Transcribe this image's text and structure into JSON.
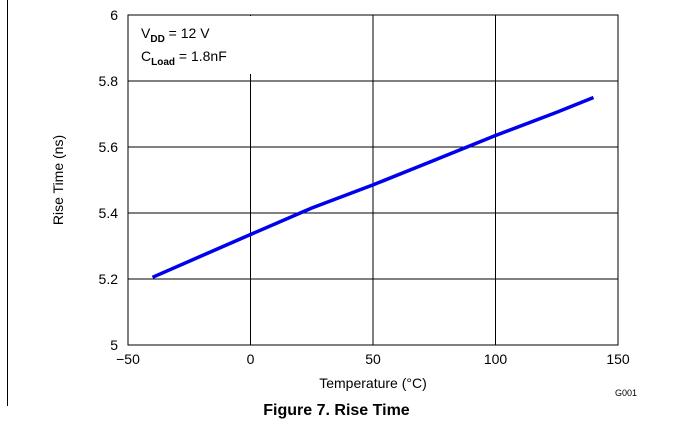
{
  "chart_data": {
    "type": "line",
    "xlabel": "Temperature (°C)",
    "ylabel": "Rise Time (ns)",
    "xlim": [
      -50,
      150
    ],
    "ylim": [
      5,
      6
    ],
    "x_ticks": [
      -50,
      0,
      50,
      100,
      150
    ],
    "x_tick_labels": [
      "−50",
      "0",
      "50",
      "100",
      "150"
    ],
    "y_ticks": [
      5,
      5.2,
      5.4,
      5.6,
      5.8,
      6
    ],
    "y_tick_labels": [
      "5",
      "5.2",
      "5.4",
      "5.6",
      "5.8",
      "6"
    ],
    "grid": true,
    "series": [
      {
        "color": "#0000ee",
        "x": [
          -40,
          -20,
          0,
          25,
          50,
          75,
          100,
          125,
          140
        ],
        "y": [
          5.205,
          5.27,
          5.335,
          5.415,
          5.485,
          5.56,
          5.635,
          5.705,
          5.75
        ]
      }
    ],
    "annotations": {
      "line1_main": "V",
      "line1_sub": "DD",
      "line1_rest": " = 12 V",
      "line2_main": "C",
      "line2_sub": "Load",
      "line2_rest": " = 1.8nF"
    },
    "code": "G001"
  },
  "caption": "Figure 7. Rise Time"
}
